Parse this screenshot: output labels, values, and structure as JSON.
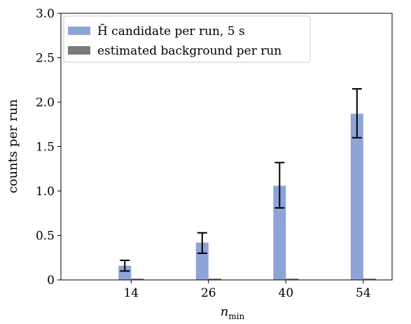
{
  "chart_data": {
    "type": "bar",
    "categories": [
      "14",
      "26",
      "40",
      "54"
    ],
    "series": [
      {
        "name": "H̄ candidate per run, 5 s",
        "color": "#8fa4d6",
        "values": [
          0.16,
          0.42,
          1.06,
          1.87
        ],
        "err_low": [
          0.1,
          0.3,
          0.81,
          1.6
        ],
        "err_high": [
          0.22,
          0.53,
          1.32,
          2.15
        ]
      },
      {
        "name": "estimated background per run",
        "color": "#7a7a7a",
        "values": [
          0.015,
          0.015,
          0.015,
          0.015
        ]
      }
    ],
    "xlabel_main": "n",
    "xlabel_sub": "min",
    "ylabel": "counts per run",
    "ylim": [
      0,
      3.0
    ],
    "yticks": [
      0,
      0.5,
      1.0,
      1.5,
      2.0,
      2.5,
      3.0
    ],
    "ytick_labels": [
      "0",
      "0.5",
      "1.0",
      "1.5",
      "2.0",
      "2.5",
      "3.0"
    ],
    "legend_position": "top-left",
    "grid": false
  }
}
